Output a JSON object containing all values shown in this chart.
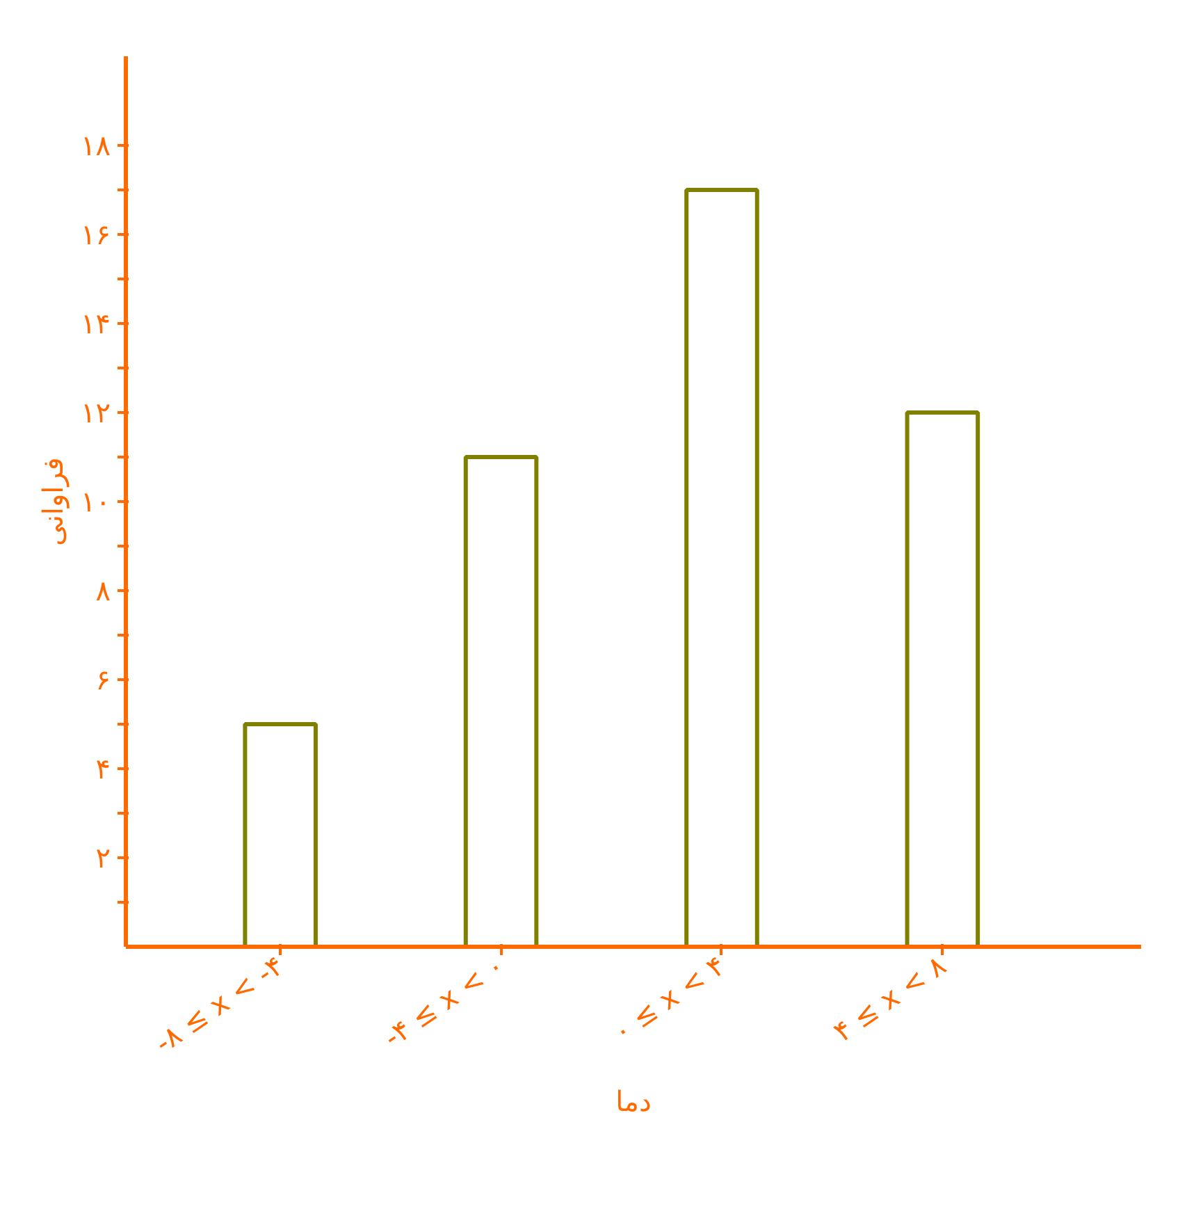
{
  "chart_data": {
    "type": "bar",
    "xlabel": "دما",
    "ylabel": "فراوانی",
    "categories": [
      "-۸ ≤ x < -۴",
      "-۴ ≤ x < ۰",
      "۰ ≤ x < ۴",
      "۴ ≤ x < ۸"
    ],
    "values": [
      5,
      11,
      17,
      12
    ],
    "color": "#808000",
    "ylim": [
      0,
      20
    ],
    "yticks": [
      {
        "value": 1,
        "label": null
      },
      {
        "value": 2,
        "label": "۲"
      },
      {
        "value": 3,
        "label": null
      },
      {
        "value": 4,
        "label": "۴"
      },
      {
        "value": 5,
        "label": null
      },
      {
        "value": 6,
        "label": "۶"
      },
      {
        "value": 7,
        "label": null
      },
      {
        "value": 8,
        "label": "۸"
      },
      {
        "value": 9,
        "label": null
      },
      {
        "value": 10,
        "label": "۱۰"
      },
      {
        "value": 11,
        "label": null
      },
      {
        "value": 12,
        "label": "۱۲"
      },
      {
        "value": 13,
        "label": null
      },
      {
        "value": 14,
        "label": "۱۴"
      },
      {
        "value": 15,
        "label": null
      },
      {
        "value": 16,
        "label": "۱۶"
      },
      {
        "value": 17,
        "label": null
      },
      {
        "value": 18,
        "label": "۱۸"
      }
    ],
    "grid": false
  }
}
